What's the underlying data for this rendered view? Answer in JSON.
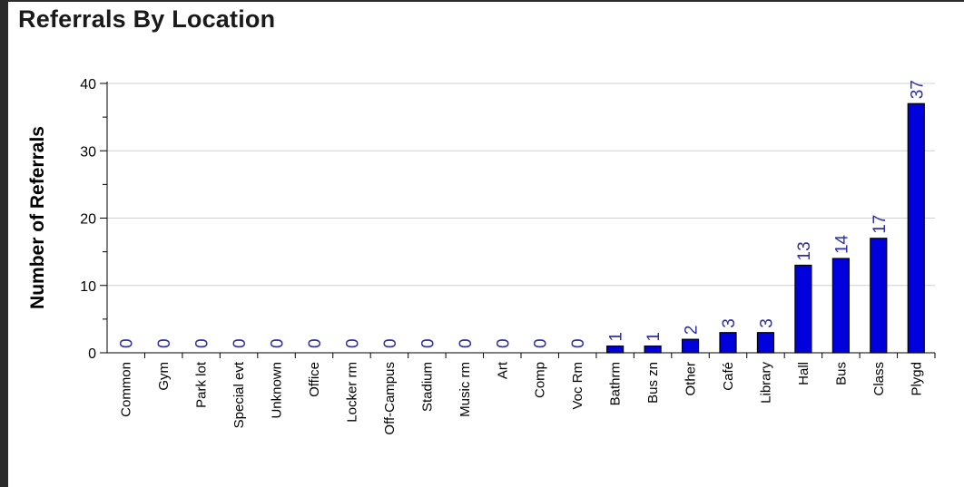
{
  "chart_data": {
    "type": "bar",
    "title": "Referrals By Location",
    "xlabel": "",
    "ylabel": "Number of Referrals",
    "ylim": [
      0,
      40
    ],
    "yticks": [
      0,
      10,
      20,
      30,
      40
    ],
    "grid": true,
    "legend": "none",
    "bar_color": "#0000dd",
    "label_color": "#2e2ea8",
    "categories": [
      "Common",
      "Gym",
      "Park lot",
      "Special evt",
      "Unknown",
      "Office",
      "Locker rm",
      "Off-Campus",
      "Stadium",
      "Music rm",
      "Art",
      "Comp",
      "Voc Rm",
      "Bathrm",
      "Bus zn",
      "Other",
      "Café",
      "Library",
      "Hall",
      "Bus",
      "Class",
      "Plygd"
    ],
    "values": [
      0,
      0,
      0,
      0,
      0,
      0,
      0,
      0,
      0,
      0,
      0,
      0,
      0,
      1,
      1,
      2,
      3,
      3,
      13,
      14,
      17,
      37
    ]
  }
}
